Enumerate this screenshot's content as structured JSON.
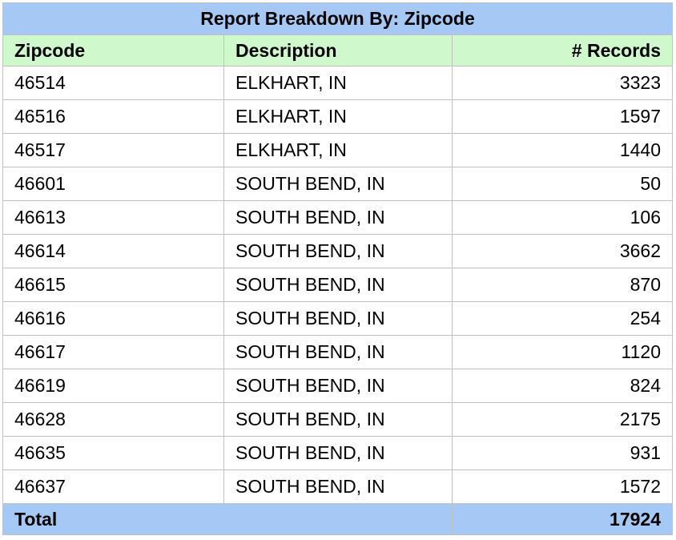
{
  "report": {
    "title": "Report Breakdown By: Zipcode",
    "columns": [
      "Zipcode",
      "Description",
      "# Records"
    ],
    "rows": [
      {
        "zipcode": "46514",
        "description": "ELKHART, IN",
        "records": "3323"
      },
      {
        "zipcode": "46516",
        "description": "ELKHART, IN",
        "records": "1597"
      },
      {
        "zipcode": "46517",
        "description": "ELKHART, IN",
        "records": "1440"
      },
      {
        "zipcode": "46601",
        "description": "SOUTH BEND, IN",
        "records": "50"
      },
      {
        "zipcode": "46613",
        "description": "SOUTH BEND, IN",
        "records": "106"
      },
      {
        "zipcode": "46614",
        "description": "SOUTH BEND, IN",
        "records": "3662"
      },
      {
        "zipcode": "46615",
        "description": "SOUTH BEND, IN",
        "records": "870"
      },
      {
        "zipcode": "46616",
        "description": "SOUTH BEND, IN",
        "records": "254"
      },
      {
        "zipcode": "46617",
        "description": "SOUTH BEND, IN",
        "records": "1120"
      },
      {
        "zipcode": "46619",
        "description": "SOUTH BEND, IN",
        "records": "824"
      },
      {
        "zipcode": "46628",
        "description": "SOUTH BEND, IN",
        "records": "2175"
      },
      {
        "zipcode": "46635",
        "description": "SOUTH BEND, IN",
        "records": "931"
      },
      {
        "zipcode": "46637",
        "description": "SOUTH BEND, IN",
        "records": "1572"
      }
    ],
    "total": {
      "label": "Total",
      "value": "17924"
    }
  },
  "colors": {
    "title_bg": "#a6c8f5",
    "header_bg": "#cff8cc",
    "total_bg": "#a6c8f5",
    "border": "#c0c0c0"
  }
}
